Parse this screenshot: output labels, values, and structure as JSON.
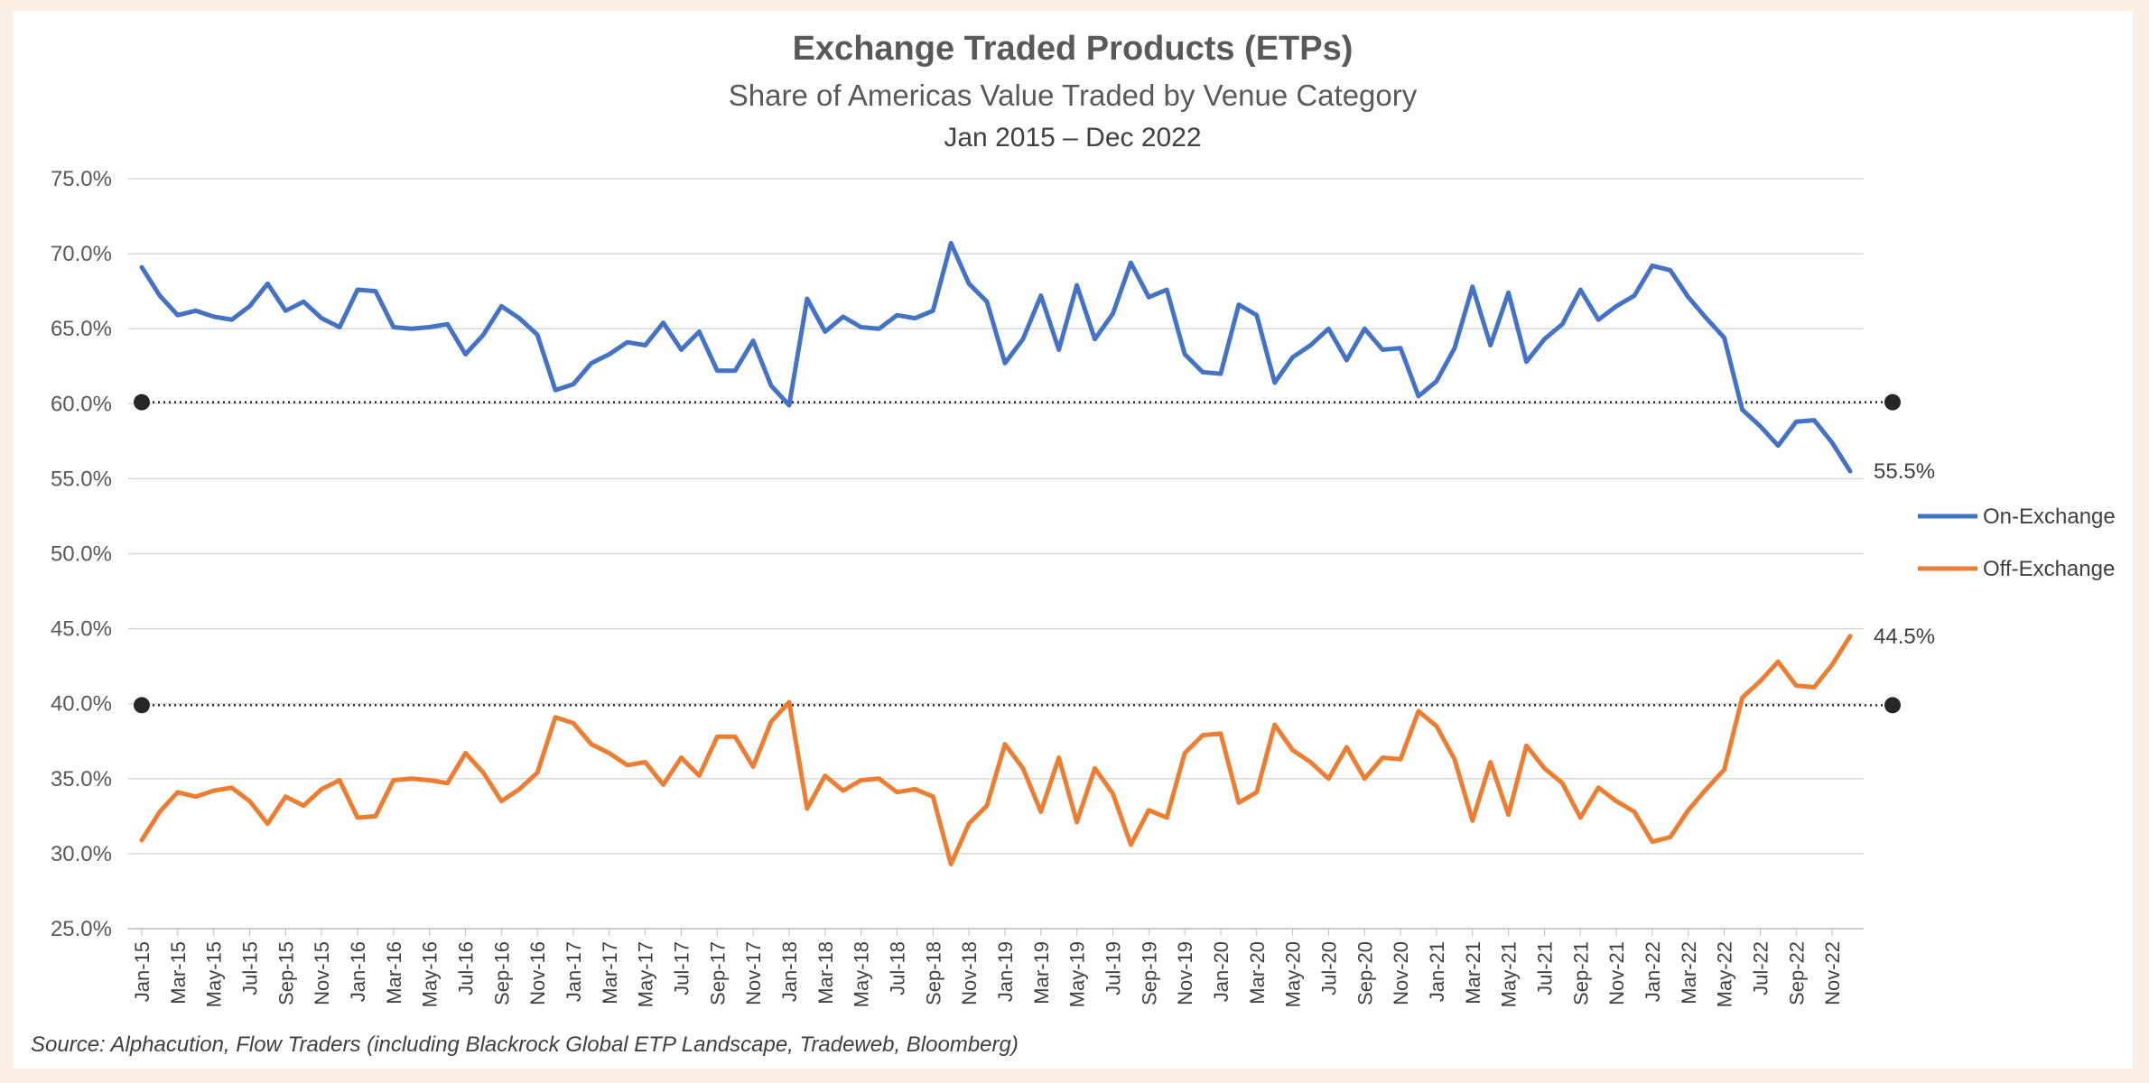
{
  "chart_data": {
    "type": "line",
    "title": "Exchange Traded Products (ETPs)",
    "subtitle": "Share of Americas Value Traded by Venue Category",
    "subtitle2": "Jan 2015 – Dec 2022",
    "source": "Source: Alphacution, Flow Traders (including Blackrock Global ETP Landscape, Tradeweb, Bloomberg)",
    "ylim": [
      25,
      75
    ],
    "yticks": [
      "25.0%",
      "30.0%",
      "35.0%",
      "40.0%",
      "45.0%",
      "50.0%",
      "55.0%",
      "60.0%",
      "65.0%",
      "70.0%",
      "75.0%"
    ],
    "ytick_values": [
      25,
      30,
      35,
      40,
      45,
      50,
      55,
      60,
      65,
      70,
      75
    ],
    "grid": true,
    "legend_position": "right",
    "x": [
      "Jan-15",
      "Feb-15",
      "Mar-15",
      "Apr-15",
      "May-15",
      "Jun-15",
      "Jul-15",
      "Aug-15",
      "Sep-15",
      "Oct-15",
      "Nov-15",
      "Dec-15",
      "Jan-16",
      "Feb-16",
      "Mar-16",
      "Apr-16",
      "May-16",
      "Jun-16",
      "Jul-16",
      "Aug-16",
      "Sep-16",
      "Oct-16",
      "Nov-16",
      "Dec-16",
      "Jan-17",
      "Feb-17",
      "Mar-17",
      "Apr-17",
      "May-17",
      "Jun-17",
      "Jul-17",
      "Aug-17",
      "Sep-17",
      "Oct-17",
      "Nov-17",
      "Dec-17",
      "Jan-18",
      "Feb-18",
      "Mar-18",
      "Apr-18",
      "May-18",
      "Jun-18",
      "Jul-18",
      "Aug-18",
      "Sep-18",
      "Oct-18",
      "Nov-18",
      "Dec-18",
      "Jan-19",
      "Feb-19",
      "Mar-19",
      "Apr-19",
      "May-19",
      "Jun-19",
      "Jul-19",
      "Aug-19",
      "Sep-19",
      "Oct-19",
      "Nov-19",
      "Dec-19",
      "Jan-20",
      "Feb-20",
      "Mar-20",
      "Apr-20",
      "May-20",
      "Jun-20",
      "Jul-20",
      "Aug-20",
      "Sep-20",
      "Oct-20",
      "Nov-20",
      "Dec-20",
      "Jan-21",
      "Feb-21",
      "Mar-21",
      "Apr-21",
      "May-21",
      "Jun-21",
      "Jul-21",
      "Aug-21",
      "Sep-21",
      "Oct-21",
      "Nov-21",
      "Dec-21",
      "Jan-22",
      "Feb-22",
      "Mar-22",
      "Apr-22",
      "May-22",
      "Jun-22",
      "Jul-22",
      "Aug-22",
      "Sep-22",
      "Oct-22",
      "Nov-22",
      "Dec-22"
    ],
    "x_tick_labels": [
      "Jan-15",
      "Mar-15",
      "May-15",
      "Jul-15",
      "Sep-15",
      "Nov-15",
      "Jan-16",
      "Mar-16",
      "May-16",
      "Jul-16",
      "Sep-16",
      "Nov-16",
      "Jan-17",
      "Mar-17",
      "May-17",
      "Jul-17",
      "Sep-17",
      "Nov-17",
      "Jan-18",
      "Mar-18",
      "May-18",
      "Jul-18",
      "Sep-18",
      "Nov-18",
      "Jan-19",
      "Mar-19",
      "May-19",
      "Jul-19",
      "Sep-19",
      "Nov-19",
      "Jan-20",
      "Mar-20",
      "May-20",
      "Jul-20",
      "Sep-20",
      "Nov-20",
      "Jan-21",
      "Mar-21",
      "May-21",
      "Jul-21",
      "Sep-21",
      "Nov-21",
      "Jan-22",
      "Mar-22",
      "May-22",
      "Jul-22",
      "Sep-22",
      "Nov-22"
    ],
    "series": [
      {
        "name": "On-Exchange",
        "color": "#4472c4",
        "end_label": "55.5%",
        "values": [
          69.1,
          67.2,
          65.9,
          66.2,
          65.8,
          65.6,
          66.5,
          68.0,
          66.2,
          66.8,
          65.7,
          65.1,
          67.6,
          67.5,
          65.1,
          65.0,
          65.1,
          65.3,
          63.3,
          64.6,
          66.5,
          65.7,
          64.6,
          60.9,
          61.3,
          62.7,
          63.3,
          64.1,
          63.9,
          65.4,
          63.6,
          64.8,
          62.2,
          62.2,
          64.2,
          61.2,
          59.9,
          67.0,
          64.8,
          65.8,
          65.1,
          65.0,
          65.9,
          65.7,
          66.2,
          70.7,
          68.0,
          66.8,
          62.7,
          64.3,
          67.2,
          63.6,
          67.9,
          64.3,
          66.0,
          69.4,
          67.1,
          67.6,
          63.3,
          62.1,
          62.0,
          66.6,
          65.9,
          61.4,
          63.1,
          63.9,
          65.0,
          62.9,
          65.0,
          63.6,
          63.7,
          60.5,
          61.5,
          63.7,
          67.8,
          63.9,
          67.4,
          62.8,
          64.3,
          65.3,
          67.6,
          65.6,
          66.5,
          67.2,
          69.2,
          68.9,
          67.1,
          65.7,
          64.4,
          59.6,
          58.5,
          57.2,
          58.8,
          58.9,
          57.4,
          55.5
        ]
      },
      {
        "name": "Off-Exchange",
        "color": "#ed7d31",
        "end_label": "44.5%",
        "values": [
          30.9,
          32.8,
          34.1,
          33.8,
          34.2,
          34.4,
          33.5,
          32.0,
          33.8,
          33.2,
          34.3,
          34.9,
          32.4,
          32.5,
          34.9,
          35.0,
          34.9,
          34.7,
          36.7,
          35.4,
          33.5,
          34.3,
          35.4,
          39.1,
          38.7,
          37.3,
          36.7,
          35.9,
          36.1,
          34.6,
          36.4,
          35.2,
          37.8,
          37.8,
          35.8,
          38.8,
          40.1,
          33.0,
          35.2,
          34.2,
          34.9,
          35.0,
          34.1,
          34.3,
          33.8,
          29.3,
          32.0,
          33.2,
          37.3,
          35.7,
          32.8,
          36.4,
          32.1,
          35.7,
          34.0,
          30.6,
          32.9,
          32.4,
          36.7,
          37.9,
          38.0,
          33.4,
          34.1,
          38.6,
          36.9,
          36.1,
          35.0,
          37.1,
          35.0,
          36.4,
          36.3,
          39.5,
          38.5,
          36.3,
          32.2,
          36.1,
          32.6,
          37.2,
          35.7,
          34.7,
          32.4,
          34.4,
          33.5,
          32.8,
          30.8,
          31.1,
          32.9,
          34.3,
          35.6,
          40.4,
          41.5,
          42.8,
          41.2,
          41.1,
          42.6,
          44.5
        ]
      }
    ],
    "reference_lines": [
      {
        "value": 60.1,
        "style": "dotted"
      },
      {
        "value": 39.9,
        "style": "dotted"
      }
    ]
  }
}
